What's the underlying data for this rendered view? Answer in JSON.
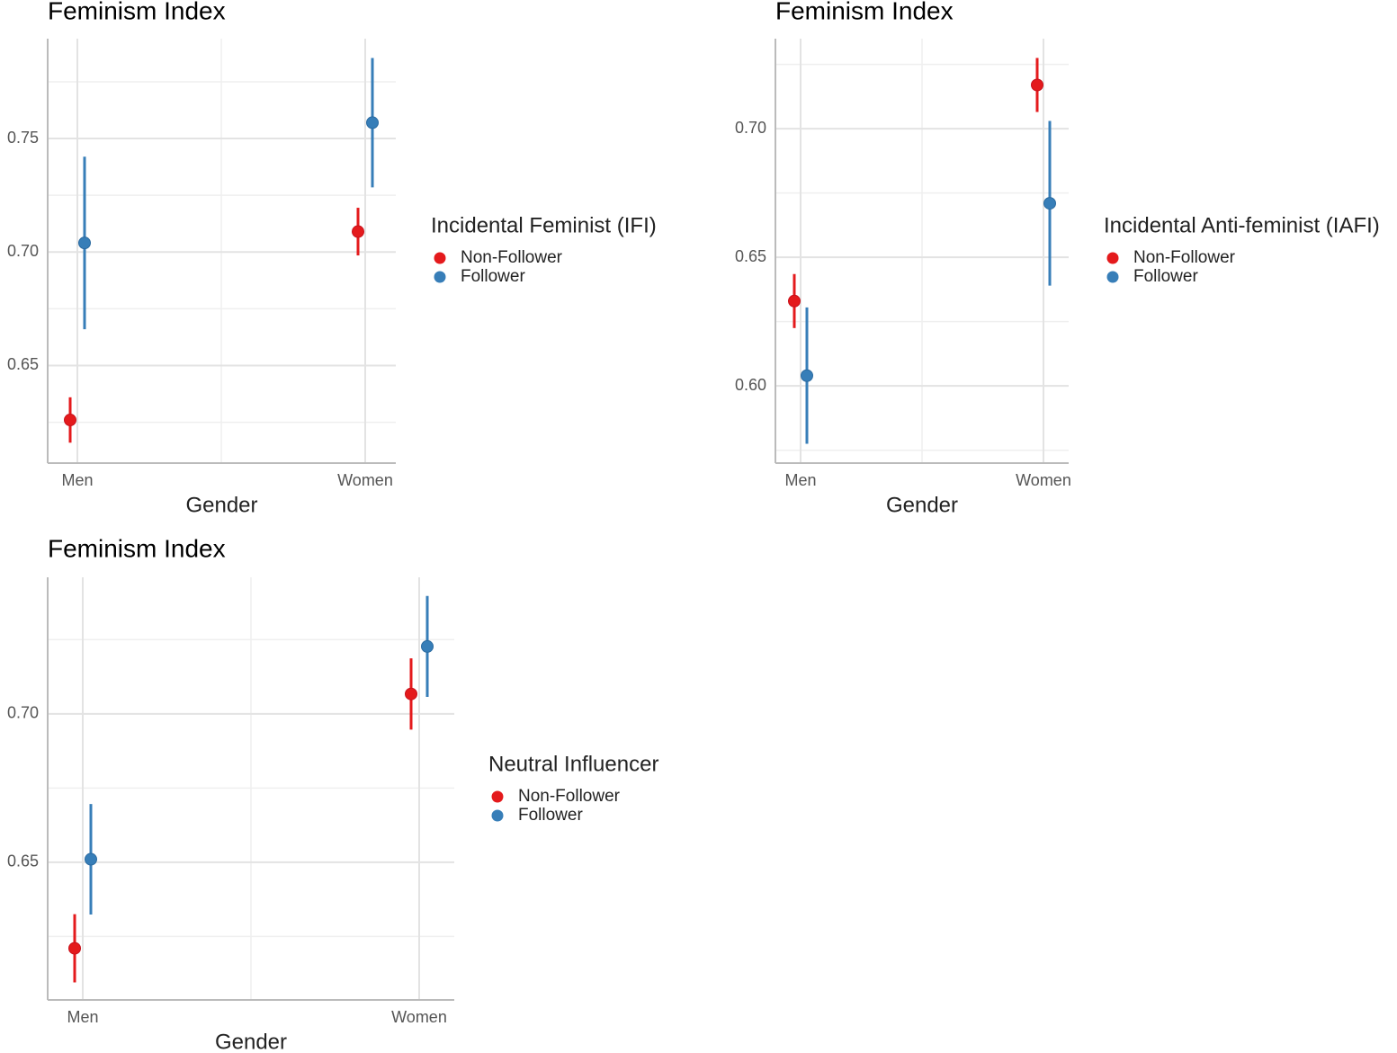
{
  "chart_data": [
    {
      "type": "errorbar",
      "title": "Feminism Index",
      "x_label": "Gender",
      "legend_title": "Incidental Feminist (IFI)",
      "categories": [
        "Men",
        "Women"
      ],
      "series": [
        {
          "name": "Non-Follower",
          "color": "#e41a1c",
          "values": [
            0.626,
            0.709
          ],
          "errors": [
            0.01,
            0.0105
          ]
        },
        {
          "name": "Follower",
          "color": "#377eb8",
          "values": [
            0.704,
            0.757
          ],
          "errors": [
            0.038,
            0.0285
          ]
        }
      ],
      "ylim": [
        0.607,
        0.794
      ],
      "yticks": [
        0.65,
        0.7,
        0.75
      ],
      "minor_yticks": [
        0.625,
        0.675,
        0.725,
        0.775
      ],
      "grid": true
    },
    {
      "type": "errorbar",
      "title": "Feminism Index",
      "x_label": "Gender",
      "legend_title": "Incidental Anti-feminist (IAFI)",
      "categories": [
        "Men",
        "Women"
      ],
      "series": [
        {
          "name": "Non-Follower",
          "color": "#e41a1c",
          "values": [
            0.633,
            0.717
          ],
          "errors": [
            0.0105,
            0.0105
          ]
        },
        {
          "name": "Follower",
          "color": "#377eb8",
          "values": [
            0.604,
            0.671
          ],
          "errors": [
            0.0265,
            0.032
          ]
        }
      ],
      "ylim": [
        0.57,
        0.735
      ],
      "yticks": [
        0.6,
        0.65,
        0.7
      ],
      "minor_yticks": [
        0.575,
        0.625,
        0.675,
        0.725
      ],
      "grid": true
    },
    {
      "type": "errorbar",
      "title": "Feminism Index",
      "x_label": "Gender",
      "legend_title": "Neutral Influencer",
      "categories": [
        "Men",
        "Women"
      ],
      "series": [
        {
          "name": "Non-Follower",
          "color": "#e41a1c",
          "values": [
            0.621,
            0.7067
          ],
          "errors": [
            0.0115,
            0.012
          ]
        },
        {
          "name": "Follower",
          "color": "#377eb8",
          "values": [
            0.651,
            0.7227
          ],
          "errors": [
            0.0186,
            0.017
          ]
        }
      ],
      "ylim": [
        0.6036,
        0.746
      ],
      "yticks": [
        0.65,
        0.7
      ],
      "minor_yticks": [
        0.625,
        0.675,
        0.725
      ],
      "grid": true
    }
  ]
}
